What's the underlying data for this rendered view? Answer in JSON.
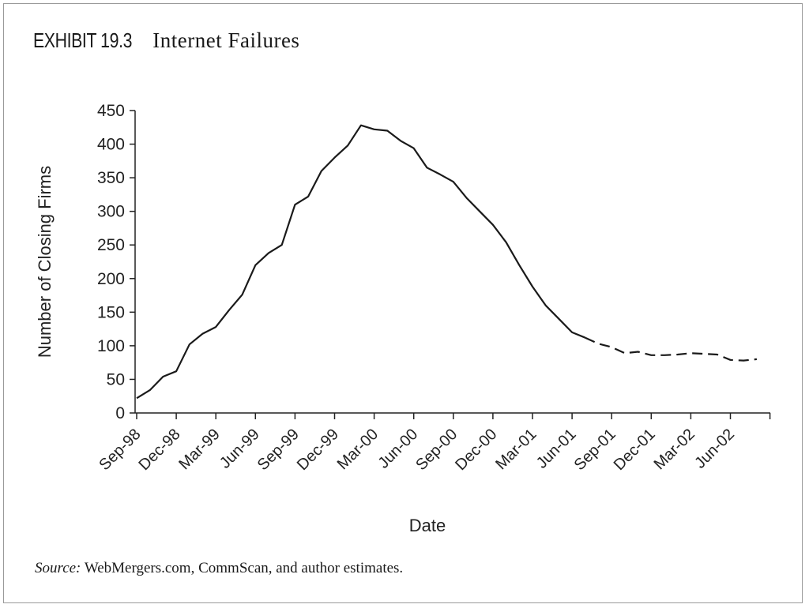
{
  "exhibit": {
    "label": "EXHIBIT 19.3",
    "title": "Internet Failures"
  },
  "source": {
    "label": "Source:",
    "text": "WebMergers.com, CommScan, and author estimates."
  },
  "chart_data": {
    "type": "line",
    "title": "Internet Failures",
    "xlabel": "Date",
    "ylabel": "Number of Closing Firms",
    "ylim": [
      0,
      450
    ],
    "yticks": [
      0,
      50,
      100,
      150,
      200,
      250,
      300,
      350,
      400,
      450
    ],
    "xtick_labels": [
      "Sep-98",
      "Dec-98",
      "Mar-99",
      "Jun-99",
      "Sep-99",
      "Dec-99",
      "Mar-00",
      "Jun-00",
      "Sep-00",
      "Dec-00",
      "Mar-01",
      "Jun-01",
      "Sep-01",
      "Dec-01",
      "Mar-02",
      "Jun-02"
    ],
    "grid": false,
    "legend": "none",
    "line_color": "#1a1a1a",
    "series": [
      {
        "style": "solid",
        "x": [
          "Sep-98",
          "Oct-98",
          "Nov-98",
          "Dec-98",
          "Jan-99",
          "Feb-99",
          "Mar-99",
          "Apr-99",
          "May-99",
          "Jun-99",
          "Jul-99",
          "Aug-99",
          "Sep-99",
          "Oct-99",
          "Nov-99",
          "Dec-99",
          "Jan-00",
          "Feb-00",
          "Mar-00",
          "Apr-00",
          "May-00",
          "Jun-00",
          "Jul-00",
          "Aug-00",
          "Sep-00",
          "Oct-00",
          "Nov-00",
          "Dec-00",
          "Jan-01",
          "Feb-01",
          "Mar-01",
          "Apr-01",
          "May-01",
          "Jun-01",
          "Jul-01"
        ],
        "values": [
          22,
          34,
          54,
          62,
          102,
          118,
          128,
          153,
          176,
          220,
          238,
          250,
          310,
          322,
          360,
          380,
          398,
          428,
          422,
          420,
          405,
          394,
          365,
          355,
          344,
          320,
          300,
          280,
          254,
          220,
          188,
          160,
          140,
          120,
          112
        ]
      },
      {
        "style": "dashed",
        "x": [
          "Jul-01",
          "Aug-01",
          "Sep-01",
          "Oct-01",
          "Nov-01",
          "Dec-01",
          "Jan-02",
          "Feb-02",
          "Mar-02",
          "Apr-02",
          "May-02",
          "Jun-02",
          "Jul-02",
          "Aug-02"
        ],
        "values": [
          112,
          103,
          98,
          89,
          91,
          86,
          86,
          87,
          89,
          88,
          87,
          79,
          78,
          80
        ]
      }
    ]
  }
}
